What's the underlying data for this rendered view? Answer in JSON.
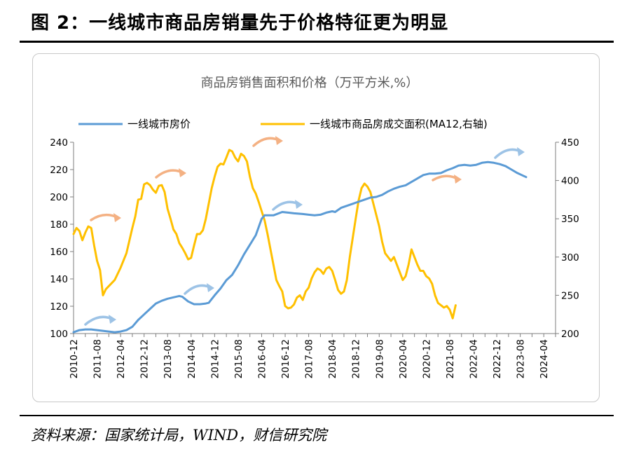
{
  "figure_title": "图 2：一线城市商品房销量先于价格特征更为明显",
  "source": "资料来源：国家统计局，WIND，财信研究院",
  "colors": {
    "price": "#5b9bd5",
    "area": "#ffc000",
    "arrow_blue": "#9dc3e6",
    "arrow_orange": "#f4b183"
  },
  "chart_data": {
    "type": "line",
    "title": "商品房销售面积和价格（万平方米,%）",
    "legend_position": "top",
    "x_tick_labels": [
      "2010-12",
      "2011-08",
      "2012-04",
      "2012-12",
      "2013-08",
      "2014-04",
      "2014-12",
      "2015-08",
      "2016-04",
      "2016-12",
      "2017-08",
      "2018-04",
      "2018-12",
      "2019-08",
      "2020-04",
      "2020-12",
      "2021-08",
      "2022-04",
      "2022-12",
      "2023-08",
      "2024-04"
    ],
    "y_left": {
      "range": [
        100,
        240
      ],
      "ticks": [
        100,
        120,
        140,
        160,
        180,
        200,
        220,
        240
      ]
    },
    "y_right": {
      "range": [
        200,
        450
      ],
      "ticks": [
        200,
        250,
        300,
        350,
        400,
        450
      ]
    },
    "grid": false,
    "series": [
      {
        "name": "一线城市房价",
        "axis": "left",
        "points": [
          [
            0,
            101
          ],
          [
            2,
            102.5
          ],
          [
            4,
            103
          ],
          [
            6,
            103
          ],
          [
            8,
            102.5
          ],
          [
            10,
            102
          ],
          [
            12,
            101.5
          ],
          [
            14,
            101
          ],
          [
            16,
            101.5
          ],
          [
            18,
            102.5
          ],
          [
            20,
            105
          ],
          [
            22,
            110
          ],
          [
            24,
            114
          ],
          [
            26,
            118
          ],
          [
            28,
            122
          ],
          [
            30,
            124
          ],
          [
            32,
            125.5
          ],
          [
            34,
            126.5
          ],
          [
            36,
            127.5
          ],
          [
            37,
            127
          ],
          [
            39,
            123.5
          ],
          [
            41,
            121.5
          ],
          [
            43,
            121.5
          ],
          [
            45,
            122
          ],
          [
            46,
            122.5
          ],
          [
            48,
            128
          ],
          [
            50,
            133
          ],
          [
            52,
            139
          ],
          [
            54,
            143
          ],
          [
            56,
            150
          ],
          [
            58,
            158
          ],
          [
            60,
            165
          ],
          [
            62,
            172
          ],
          [
            64,
            184
          ],
          [
            65,
            186.5
          ],
          [
            68,
            186.5
          ],
          [
            71,
            189
          ],
          [
            73,
            188.5
          ],
          [
            75,
            188
          ],
          [
            78,
            187.5
          ],
          [
            80,
            187
          ],
          [
            82,
            186.5
          ],
          [
            84,
            187
          ],
          [
            86,
            188.5
          ],
          [
            88,
            189.5
          ],
          [
            89,
            189
          ],
          [
            91,
            192
          ],
          [
            93,
            193.5
          ],
          [
            95,
            195
          ],
          [
            97,
            196.5
          ],
          [
            99,
            198
          ],
          [
            101,
            199.5
          ],
          [
            103,
            200
          ],
          [
            105,
            201.5
          ],
          [
            107,
            204
          ],
          [
            109,
            206
          ],
          [
            111,
            207.5
          ],
          [
            113,
            208.5
          ],
          [
            115,
            211
          ],
          [
            117,
            213.5
          ],
          [
            119,
            216
          ],
          [
            121,
            217
          ],
          [
            123,
            217
          ],
          [
            125,
            217.5
          ],
          [
            127,
            219.5
          ],
          [
            129,
            221
          ],
          [
            131,
            223
          ],
          [
            133,
            223.5
          ],
          [
            135,
            223
          ],
          [
            137,
            223.5
          ],
          [
            139,
            225
          ],
          [
            141,
            225.5
          ],
          [
            143,
            225
          ],
          [
            145,
            224
          ],
          [
            147,
            222.5
          ],
          [
            149,
            220
          ],
          [
            151,
            217.5
          ],
          [
            153,
            215.5
          ],
          [
            154,
            214.5
          ]
        ]
      },
      {
        "name": "一线城市商品房成交面积(MA12,右轴)",
        "axis": "right",
        "points": [
          [
            0,
            330
          ],
          [
            1,
            338
          ],
          [
            2,
            334
          ],
          [
            3,
            322
          ],
          [
            4,
            332
          ],
          [
            5,
            340
          ],
          [
            6,
            338
          ],
          [
            7,
            315
          ],
          [
            8,
            295
          ],
          [
            9,
            283
          ],
          [
            10,
            250
          ],
          [
            11,
            258
          ],
          [
            12,
            262
          ],
          [
            14,
            270
          ],
          [
            16,
            286
          ],
          [
            18,
            305
          ],
          [
            20,
            338
          ],
          [
            21,
            353
          ],
          [
            22,
            375
          ],
          [
            23,
            376
          ],
          [
            24,
            395
          ],
          [
            25,
            397
          ],
          [
            26,
            394
          ],
          [
            27,
            388
          ],
          [
            28,
            384
          ],
          [
            29,
            393
          ],
          [
            30,
            394
          ],
          [
            31,
            385
          ],
          [
            32,
            363
          ],
          [
            33,
            350
          ],
          [
            34,
            336
          ],
          [
            35,
            330
          ],
          [
            36,
            318
          ],
          [
            37,
            312
          ],
          [
            38,
            305
          ],
          [
            39,
            297
          ],
          [
            40,
            299
          ],
          [
            41,
            315
          ],
          [
            42,
            330
          ],
          [
            43,
            330
          ],
          [
            44,
            335
          ],
          [
            45,
            350
          ],
          [
            46,
            370
          ],
          [
            47,
            390
          ],
          [
            48,
            405
          ],
          [
            49,
            418
          ],
          [
            50,
            422
          ],
          [
            51,
            421
          ],
          [
            52,
            430
          ],
          [
            53,
            440
          ],
          [
            54,
            438
          ],
          [
            55,
            430
          ],
          [
            56,
            425
          ],
          [
            57,
            435
          ],
          [
            58,
            432
          ],
          [
            59,
            425
          ],
          [
            60,
            405
          ],
          [
            61,
            390
          ],
          [
            62,
            383
          ],
          [
            63,
            372
          ],
          [
            64,
            360
          ],
          [
            65,
            348
          ],
          [
            66,
            330
          ],
          [
            67,
            310
          ],
          [
            68,
            290
          ],
          [
            69,
            270
          ],
          [
            70,
            262
          ],
          [
            71,
            255
          ],
          [
            72,
            236
          ],
          [
            73,
            233
          ],
          [
            74,
            234
          ],
          [
            75,
            238
          ],
          [
            76,
            247
          ],
          [
            77,
            250
          ],
          [
            78,
            244
          ],
          [
            79,
            255
          ],
          [
            80,
            260
          ],
          [
            81,
            272
          ],
          [
            82,
            280
          ],
          [
            83,
            285
          ],
          [
            84,
            283
          ],
          [
            85,
            278
          ],
          [
            86,
            285
          ],
          [
            87,
            287
          ],
          [
            88,
            282
          ],
          [
            89,
            270
          ],
          [
            90,
            257
          ],
          [
            91,
            252
          ],
          [
            92,
            255
          ],
          [
            93,
            270
          ],
          [
            94,
            300
          ],
          [
            95,
            325
          ],
          [
            96,
            350
          ],
          [
            97,
            374
          ],
          [
            98,
            390
          ],
          [
            99,
            396
          ],
          [
            100,
            392
          ],
          [
            101,
            385
          ],
          [
            102,
            370
          ],
          [
            103,
            355
          ],
          [
            104,
            340
          ],
          [
            105,
            320
          ],
          [
            106,
            305
          ],
          [
            107,
            300
          ],
          [
            108,
            295
          ],
          [
            109,
            300
          ],
          [
            110,
            290
          ],
          [
            111,
            280
          ],
          [
            112,
            270
          ],
          [
            113,
            275
          ],
          [
            114,
            290
          ],
          [
            115,
            310
          ],
          [
            116,
            300
          ],
          [
            117,
            290
          ],
          [
            118,
            282
          ],
          [
            119,
            282
          ],
          [
            120,
            275
          ],
          [
            121,
            272
          ],
          [
            122,
            265
          ],
          [
            123,
            250
          ],
          [
            124,
            240
          ],
          [
            125,
            237
          ],
          [
            126,
            234
          ],
          [
            127,
            236
          ],
          [
            128,
            231
          ],
          [
            129,
            220
          ],
          [
            130,
            237
          ]
        ]
      }
    ]
  }
}
